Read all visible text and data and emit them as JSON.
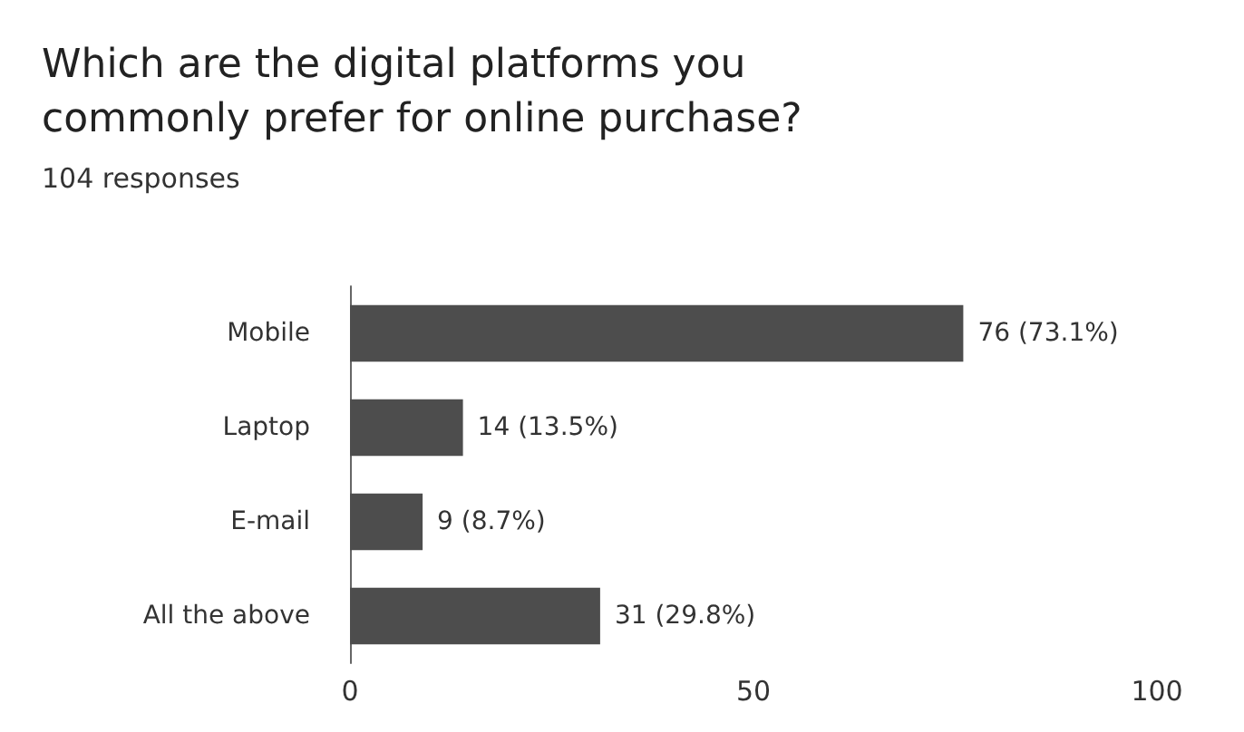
{
  "chart_data": {
    "type": "bar",
    "orientation": "horizontal",
    "title": "Which are the digital platforms you commonly prefer for online purchase?",
    "subtitle": "104 responses",
    "categories": [
      "Mobile",
      "Laptop",
      "E-mail",
      "All the above"
    ],
    "values": [
      76,
      14,
      9,
      31
    ],
    "value_labels": [
      "76 (73.1%)",
      "14 (13.5%)",
      "9 (8.7%)",
      "31 (29.8%)"
    ],
    "color": "#4d4d4d",
    "xlim": [
      0,
      100
    ],
    "xticks": [
      0,
      50,
      100
    ],
    "grid": false
  }
}
